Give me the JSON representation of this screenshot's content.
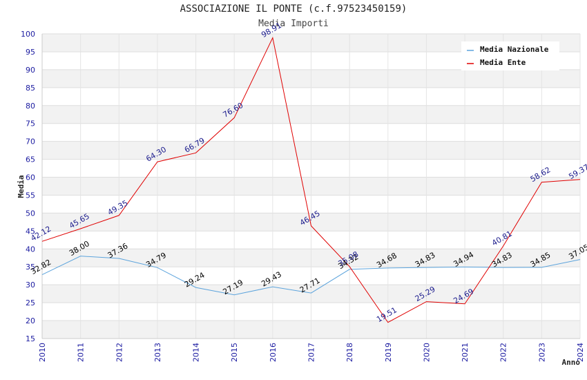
{
  "chart_data": {
    "type": "line",
    "title": "ASSOCIAZIONE IL PONTE (c.f.97523450159)",
    "subtitle": "Media Importi",
    "xlabel": "Anno",
    "ylabel": "Media",
    "ylim": [
      15,
      100
    ],
    "yticks": [
      15,
      20,
      25,
      30,
      35,
      40,
      45,
      50,
      55,
      60,
      65,
      70,
      75,
      80,
      85,
      90,
      95,
      100
    ],
    "x": [
      "2010",
      "2011",
      "2012",
      "2013",
      "2014",
      "2015",
      "2016",
      "2017",
      "2018",
      "2019",
      "2020",
      "2021",
      "2022",
      "2023",
      "2024"
    ],
    "grid": true,
    "legend_position": "top-right",
    "series": [
      {
        "name": "Media Nazionale",
        "color": "#5ba3dc",
        "label_color": "#000000",
        "values": [
          32.82,
          38.0,
          37.36,
          34.79,
          29.24,
          27.19,
          29.43,
          27.71,
          34.32,
          34.68,
          34.83,
          34.94,
          34.83,
          34.85,
          37.05
        ],
        "labels": [
          "32.82",
          "38.00",
          "37.36",
          "34.79",
          "29.24",
          "27.19",
          "29.43",
          "27.71",
          "34.32",
          "34.68",
          "34.83",
          "34.94",
          "34.83",
          "34.85",
          "37.05"
        ]
      },
      {
        "name": "Media Ente",
        "color": "#e00000",
        "label_color": "#1a1a8c",
        "values": [
          42.12,
          45.65,
          49.35,
          64.3,
          66.79,
          76.6,
          98.91,
          46.45,
          35.08,
          19.51,
          25.29,
          24.69,
          40.81,
          58.62,
          59.37
        ],
        "labels": [
          "42.12",
          "45.65",
          "49.35",
          "64.30",
          "66.79",
          "76.60",
          "98.91",
          "46.45",
          "35.08",
          "19.51",
          "25.29",
          "24.69",
          "40.81",
          "58.62",
          "59.37"
        ]
      }
    ]
  }
}
